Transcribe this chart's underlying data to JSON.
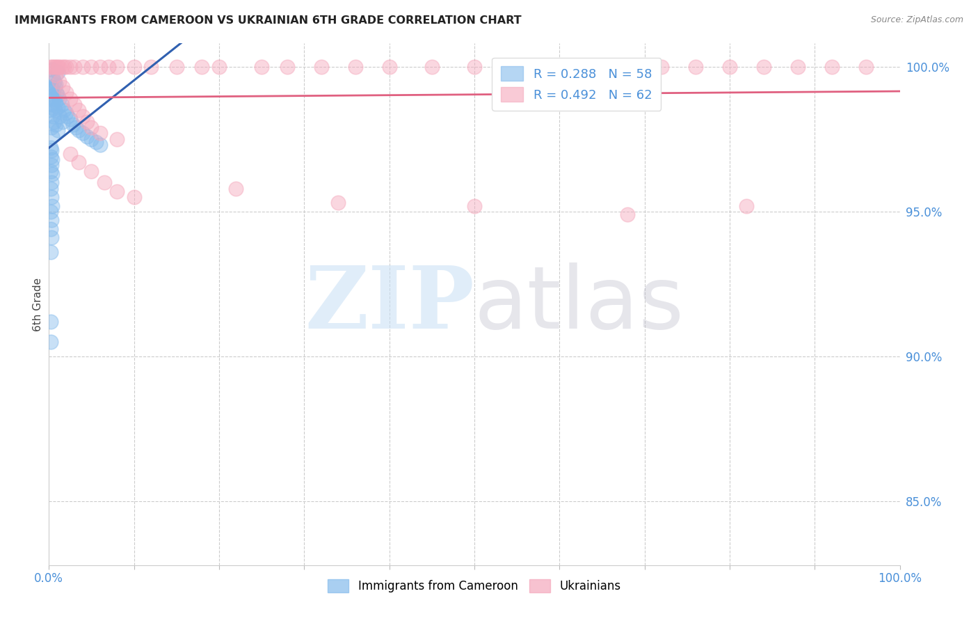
{
  "title": "IMMIGRANTS FROM CAMEROON VS UKRAINIAN 6TH GRADE CORRELATION CHART",
  "source": "Source: ZipAtlas.com",
  "ylabel": "6th Grade",
  "xmin": 0.0,
  "xmax": 1.0,
  "ymin": 0.828,
  "ymax": 1.008,
  "ytick_vals": [
    0.85,
    0.9,
    0.95,
    1.0
  ],
  "ytick_labels": [
    "85.0%",
    "90.0%",
    "95.0%",
    "100.0%"
  ],
  "legend_r1": "R = 0.288",
  "legend_n1": "N = 58",
  "legend_r2": "R = 0.492",
  "legend_n2": "N = 62",
  "color_blue": "#85bbec",
  "color_pink": "#f5a8bc",
  "color_blue_line": "#3060b0",
  "color_pink_line": "#e06080",
  "color_axis": "#4a90d9",
  "blue_points": [
    [
      0.004,
      0.999
    ],
    [
      0.01,
      0.998
    ],
    [
      0.005,
      0.996
    ],
    [
      0.006,
      0.995
    ],
    [
      0.008,
      0.994
    ],
    [
      0.003,
      0.993
    ],
    [
      0.007,
      0.993
    ],
    [
      0.004,
      0.992
    ],
    [
      0.009,
      0.991
    ],
    [
      0.005,
      0.99
    ],
    [
      0.01,
      0.99
    ],
    [
      0.006,
      0.989
    ],
    [
      0.012,
      0.989
    ],
    [
      0.008,
      0.988
    ],
    [
      0.003,
      0.987
    ],
    [
      0.015,
      0.987
    ],
    [
      0.004,
      0.986
    ],
    [
      0.01,
      0.986
    ],
    [
      0.002,
      0.985
    ],
    [
      0.007,
      0.985
    ],
    [
      0.018,
      0.985
    ],
    [
      0.02,
      0.984
    ],
    [
      0.005,
      0.983
    ],
    [
      0.013,
      0.983
    ],
    [
      0.022,
      0.983
    ],
    [
      0.025,
      0.982
    ],
    [
      0.006,
      0.981
    ],
    [
      0.016,
      0.981
    ],
    [
      0.008,
      0.98
    ],
    [
      0.028,
      0.98
    ],
    [
      0.003,
      0.979
    ],
    [
      0.032,
      0.979
    ],
    [
      0.01,
      0.978
    ],
    [
      0.035,
      0.978
    ],
    [
      0.04,
      0.977
    ],
    [
      0.004,
      0.976
    ],
    [
      0.045,
      0.976
    ],
    [
      0.05,
      0.975
    ],
    [
      0.055,
      0.974
    ],
    [
      0.06,
      0.973
    ],
    [
      0.002,
      0.972
    ],
    [
      0.003,
      0.971
    ],
    [
      0.002,
      0.969
    ],
    [
      0.004,
      0.968
    ],
    [
      0.003,
      0.966
    ],
    [
      0.002,
      0.964
    ],
    [
      0.004,
      0.963
    ],
    [
      0.003,
      0.96
    ],
    [
      0.002,
      0.958
    ],
    [
      0.003,
      0.955
    ],
    [
      0.004,
      0.952
    ],
    [
      0.002,
      0.95
    ],
    [
      0.003,
      0.947
    ],
    [
      0.002,
      0.944
    ],
    [
      0.003,
      0.941
    ],
    [
      0.002,
      0.936
    ],
    [
      0.002,
      0.912
    ],
    [
      0.002,
      0.905
    ]
  ],
  "pink_points": [
    [
      0.002,
      1.0
    ],
    [
      0.004,
      1.0
    ],
    [
      0.006,
      1.0
    ],
    [
      0.008,
      1.0
    ],
    [
      0.01,
      1.0
    ],
    [
      0.012,
      1.0
    ],
    [
      0.015,
      1.0
    ],
    [
      0.018,
      1.0
    ],
    [
      0.02,
      1.0
    ],
    [
      0.025,
      1.0
    ],
    [
      0.03,
      1.0
    ],
    [
      0.04,
      1.0
    ],
    [
      0.05,
      1.0
    ],
    [
      0.06,
      1.0
    ],
    [
      0.07,
      1.0
    ],
    [
      0.08,
      1.0
    ],
    [
      0.1,
      1.0
    ],
    [
      0.12,
      1.0
    ],
    [
      0.15,
      1.0
    ],
    [
      0.18,
      1.0
    ],
    [
      0.2,
      1.0
    ],
    [
      0.25,
      1.0
    ],
    [
      0.28,
      1.0
    ],
    [
      0.32,
      1.0
    ],
    [
      0.36,
      1.0
    ],
    [
      0.4,
      1.0
    ],
    [
      0.45,
      1.0
    ],
    [
      0.5,
      1.0
    ],
    [
      0.55,
      1.0
    ],
    [
      0.6,
      1.0
    ],
    [
      0.64,
      1.0
    ],
    [
      0.68,
      1.0
    ],
    [
      0.72,
      1.0
    ],
    [
      0.76,
      1.0
    ],
    [
      0.8,
      1.0
    ],
    [
      0.84,
      1.0
    ],
    [
      0.88,
      1.0
    ],
    [
      0.92,
      1.0
    ],
    [
      0.96,
      1.0
    ],
    [
      0.008,
      0.997
    ],
    [
      0.012,
      0.995
    ],
    [
      0.016,
      0.993
    ],
    [
      0.02,
      0.991
    ],
    [
      0.025,
      0.989
    ],
    [
      0.03,
      0.987
    ],
    [
      0.035,
      0.985
    ],
    [
      0.04,
      0.983
    ],
    [
      0.045,
      0.981
    ],
    [
      0.05,
      0.979
    ],
    [
      0.06,
      0.977
    ],
    [
      0.08,
      0.975
    ],
    [
      0.025,
      0.97
    ],
    [
      0.035,
      0.967
    ],
    [
      0.05,
      0.964
    ],
    [
      0.065,
      0.96
    ],
    [
      0.08,
      0.957
    ],
    [
      0.1,
      0.955
    ],
    [
      0.22,
      0.958
    ],
    [
      0.34,
      0.953
    ],
    [
      0.5,
      0.952
    ],
    [
      0.68,
      0.949
    ],
    [
      0.82,
      0.952
    ]
  ],
  "blue_line_x": [
    0.0,
    1.0
  ],
  "blue_line_y": [
    0.96,
    1.002
  ],
  "pink_line_x": [
    0.0,
    1.0
  ],
  "pink_line_y": [
    0.977,
    1.002
  ]
}
